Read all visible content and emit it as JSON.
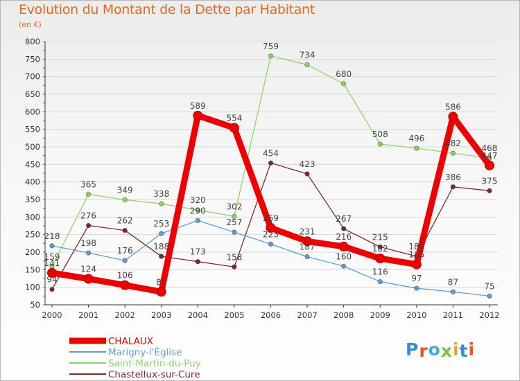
{
  "title": "Evolution du Montant de la Dette par Habitant",
  "subtitle": "(en €)",
  "logo_text": "Proxiti",
  "logo_colors": [
    "#2e8fd8",
    "#e8541c",
    "#3fa9e0",
    "#7cc142",
    "#f2a31b",
    "#2e8fd8",
    "#e8541c"
  ],
  "chart_data": {
    "type": "line",
    "x": [
      2000,
      2001,
      2002,
      2003,
      2004,
      2005,
      2006,
      2007,
      2008,
      2009,
      2010,
      2011,
      2012
    ],
    "ylim": [
      50,
      800
    ],
    "yticks": [
      50,
      100,
      150,
      200,
      250,
      300,
      350,
      400,
      450,
      500,
      550,
      600,
      650,
      700,
      750,
      800
    ],
    "grid": "horizontal",
    "legend_position": "bottom-left",
    "series": [
      {
        "name": "CHALAUX",
        "color": "#ee0000",
        "values": [
          141,
          124,
          106,
          87,
          589,
          554,
          269,
          231,
          216,
          182,
          165,
          586,
          447
        ]
      },
      {
        "name": "Marigny-l'Église",
        "color": "#5f9fd0",
        "values": [
          218,
          198,
          176,
          253,
          290,
          257,
          223,
          187,
          160,
          116,
          97,
          87,
          75
        ]
      },
      {
        "name": "Saint-Martin-du-Puy",
        "color": "#8ed46a",
        "values": [
          159,
          365,
          349,
          338,
          320,
          302,
          759,
          734,
          680,
          508,
          496,
          482,
          468
        ]
      },
      {
        "name": "Chastellux-sur-Cure",
        "color": "#7a2a2a",
        "values": [
          94,
          276,
          262,
          188,
          173,
          158,
          454,
          423,
          267,
          215,
          188,
          386,
          375
        ]
      }
    ]
  }
}
